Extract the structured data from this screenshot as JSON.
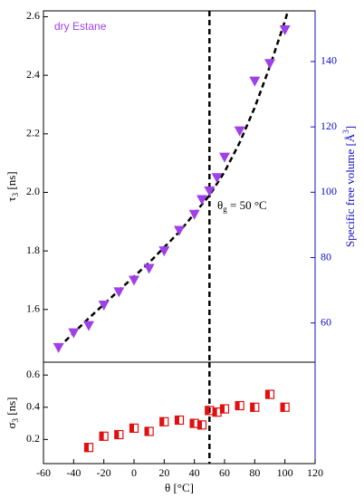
{
  "chart_data": [
    {
      "type": "scatter",
      "x": [
        -50,
        -40,
        -30,
        -20,
        -10,
        0,
        10,
        20,
        30,
        40,
        45,
        50,
        55,
        60,
        70,
        80,
        90,
        100
      ],
      "series": [
        {
          "name": "dry Estane",
          "color": "#a040e8",
          "values": [
            1.47,
            1.52,
            1.545,
            1.615,
            1.66,
            1.7,
            1.74,
            1.8,
            1.87,
            1.925,
            1.975,
            2.005,
            2.05,
            2.12,
            2.21,
            2.38,
            2.44,
            2.555
          ]
        }
      ],
      "fit": {
        "x": [
          -50,
          -30,
          -10,
          10,
          30,
          50,
          60,
          70,
          80,
          90,
          100,
          102
        ],
        "values": [
          1.47,
          1.57,
          1.665,
          1.76,
          1.865,
          1.99,
          2.07,
          2.17,
          2.29,
          2.43,
          2.585,
          2.62
        ]
      },
      "xlim": [
        -60,
        120
      ],
      "ylim": [
        1.42,
        2.62
      ],
      "yticks": [
        {
          "value": 1.6,
          "label": "1.6"
        },
        {
          "value": 1.8,
          "label": "1.8"
        },
        {
          "value": 2.0,
          "label": "2.0"
        },
        {
          "value": 2.2,
          "label": "2.2"
        },
        {
          "value": 2.4,
          "label": "2.4"
        },
        {
          "value": 2.6,
          "label": "2.6"
        }
      ],
      "y2lim": [
        48,
        155.5
      ],
      "y2ticks": [
        60,
        80,
        100,
        120,
        140
      ],
      "ylabel": {
        "symbol": "τ",
        "sub": "3",
        "unit": " [ns]"
      },
      "y2label": {
        "text": "Specific free volume [Å",
        "sup": "3",
        "end": "]"
      },
      "vline": 50,
      "annotation": {
        "symbol": "θ",
        "sub": "g",
        "text": " = 50 °C"
      }
    },
    {
      "type": "scatter",
      "x": [
        -30,
        -20,
        -10,
        0,
        10,
        20,
        30,
        40,
        45,
        50,
        55,
        60,
        70,
        80,
        90,
        100
      ],
      "series": [
        {
          "color": "#e01010",
          "values": [
            0.15,
            0.22,
            0.23,
            0.27,
            0.25,
            0.31,
            0.32,
            0.3,
            0.29,
            0.38,
            0.37,
            0.39,
            0.41,
            0.4,
            0.48,
            0.4
          ]
        }
      ],
      "xlim": [
        -60,
        120
      ],
      "ylim": [
        0.05,
        0.68
      ],
      "yticks": [
        0.2,
        0.4,
        0.6
      ],
      "xticks": [
        -60,
        -40,
        -20,
        0,
        20,
        40,
        60,
        80,
        100,
        120
      ],
      "vline": 50,
      "ylabel": {
        "symbol": "σ",
        "sub": "3",
        "unit": " [ns]"
      },
      "xlabel": "θ [°C]"
    }
  ]
}
